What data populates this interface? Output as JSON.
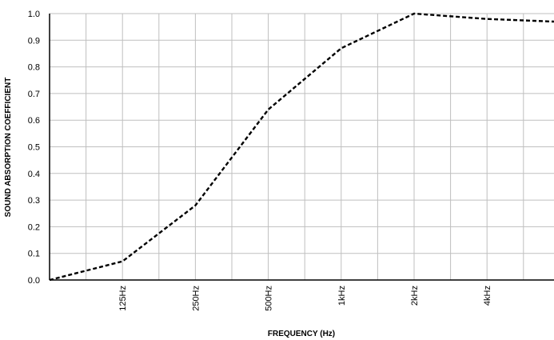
{
  "chart_data": {
    "type": "line",
    "title": "",
    "xlabel": "FREQUENCY (Hz)",
    "ylabel": "SOUND ABSORPTION COEFFICIENT",
    "ylim": [
      0,
      1.0
    ],
    "y_ticks": [
      "0.0",
      "0.1",
      "0.2",
      "0.3",
      "0.4",
      "0.5",
      "0.6",
      "0.7",
      "0.8",
      "0.9",
      "1.0"
    ],
    "x_tick_labels": [
      "125Hz",
      "250Hz",
      "500Hz",
      "1kHz",
      "2kHz",
      "4kHz"
    ],
    "grid": true,
    "line_style": "dashed",
    "line_color": "#000000",
    "grid_color": "#bfbfbf",
    "series": [
      {
        "values": [
          0.0,
          0.07,
          0.28,
          0.64,
          0.87,
          1.0,
          0.98,
          0.97
        ]
      }
    ]
  }
}
